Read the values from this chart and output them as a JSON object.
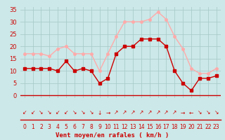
{
  "x": [
    0,
    1,
    2,
    3,
    4,
    5,
    6,
    7,
    8,
    9,
    10,
    11,
    12,
    13,
    14,
    15,
    16,
    17,
    18,
    19,
    20,
    21,
    22,
    23
  ],
  "wind_avg": [
    11,
    11,
    11,
    11,
    10,
    14,
    10,
    11,
    10,
    5,
    7,
    17,
    20,
    20,
    23,
    23,
    23,
    20,
    10,
    5,
    2,
    7,
    7,
    8
  ],
  "wind_gust": [
    17,
    17,
    17,
    16,
    19,
    20,
    17,
    17,
    17,
    10,
    17,
    24,
    30,
    30,
    30,
    31,
    34,
    31,
    24,
    19,
    11,
    9,
    9,
    11
  ],
  "avg_color": "#cc0000",
  "gust_color": "#ffaaaa",
  "bg_color": "#cce8e8",
  "grid_color": "#aacccc",
  "xlabel": "Vent moyen/en rafales ( km/h )",
  "ylabel_ticks": [
    0,
    5,
    10,
    15,
    20,
    25,
    30,
    35
  ],
  "ylim": [
    -1,
    36
  ],
  "xlim": [
    -0.5,
    23.5
  ],
  "arrow_symbols": [
    "↙",
    "↙",
    "↘",
    "↘",
    "↙",
    "↙",
    "↘",
    "↘",
    "↘",
    "↓",
    "→",
    "↗",
    "↗",
    "↗",
    "↗",
    "↗",
    "↗",
    "↗",
    "↗",
    "→",
    "←",
    "↘",
    "↘",
    "↘"
  ]
}
